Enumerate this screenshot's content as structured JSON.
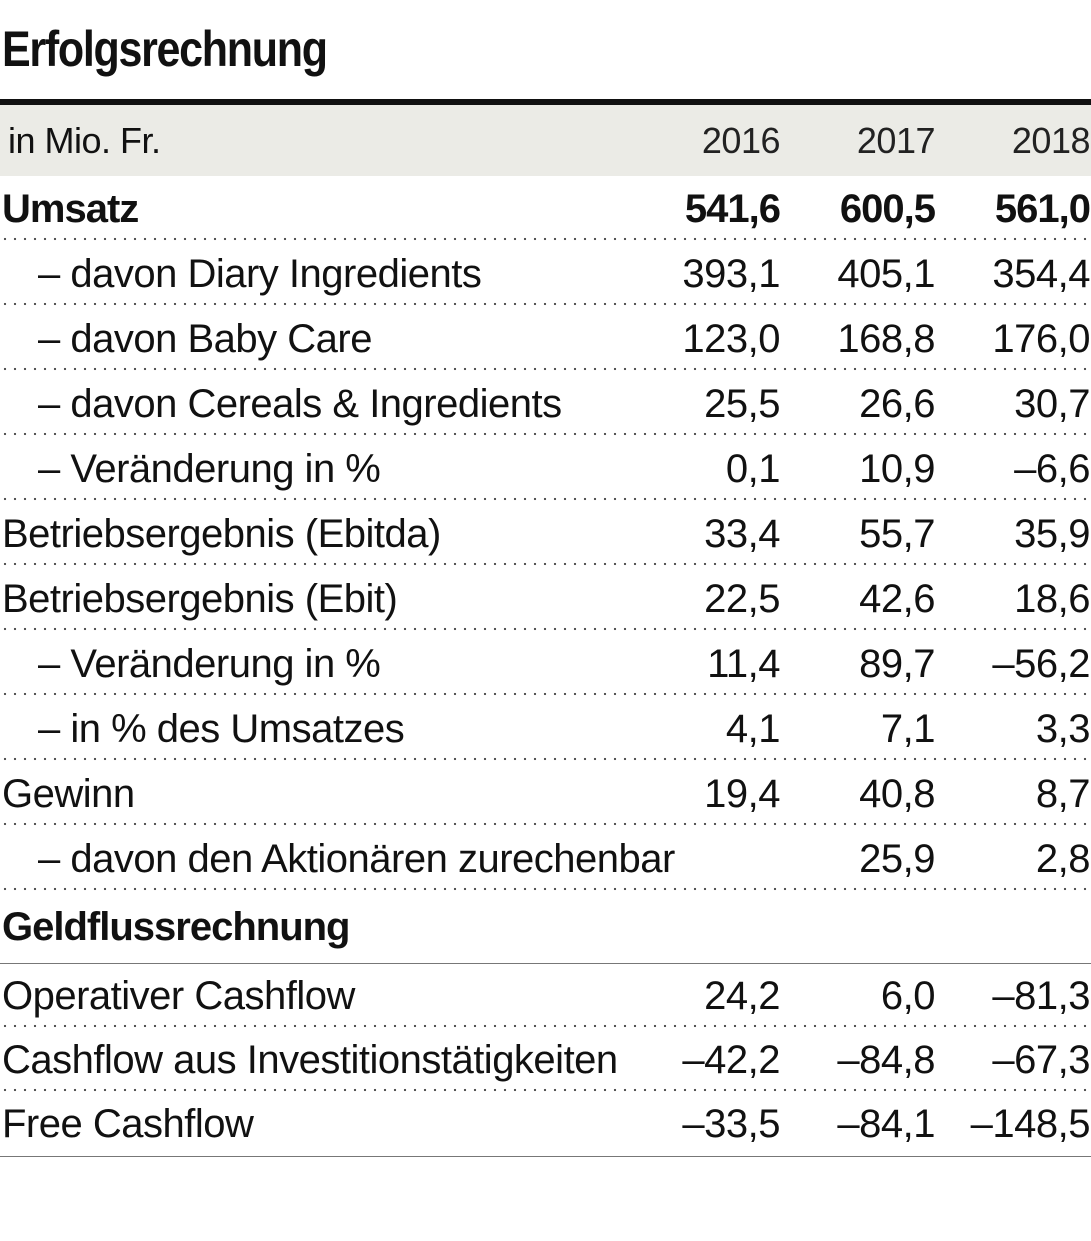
{
  "title": "Erfolgsrechnung",
  "header": {
    "unit_label": "in Mio. Fr.",
    "years": [
      "2016",
      "2017",
      "2018"
    ]
  },
  "income_rows": [
    {
      "label": "Umsatz",
      "values": [
        "541,6",
        "600,5",
        "561,0"
      ],
      "style": "bold",
      "indent": false
    },
    {
      "label": "– davon Diary Ingredients",
      "values": [
        "393,1",
        "405,1",
        "354,4"
      ],
      "style": "normal",
      "indent": true
    },
    {
      "label": "– davon Baby Care",
      "values": [
        "123,0",
        "168,8",
        "176,0"
      ],
      "style": "normal",
      "indent": true
    },
    {
      "label": "– davon Cereals & Ingredients",
      "values": [
        "25,5",
        "26,6",
        "30,7"
      ],
      "style": "normal",
      "indent": true
    },
    {
      "label": "– Veränderung in %",
      "values": [
        "0,1",
        "10,9",
        "–6,6"
      ],
      "style": "normal",
      "indent": true
    },
    {
      "label": "Betriebsergebnis (Ebitda)",
      "values": [
        "33,4",
        "55,7",
        "35,9"
      ],
      "style": "normal",
      "indent": false
    },
    {
      "label": "Betriebsergebnis (Ebit)",
      "values": [
        "22,5",
        "42,6",
        "18,6"
      ],
      "style": "normal",
      "indent": false
    },
    {
      "label": "– Veränderung in %",
      "values": [
        "11,4",
        "89,7",
        "–56,2"
      ],
      "style": "normal",
      "indent": true
    },
    {
      "label": "– in % des Umsatzes",
      "values": [
        "4,1",
        "7,1",
        "3,3"
      ],
      "style": "normal",
      "indent": true
    },
    {
      "label": "Gewinn",
      "values": [
        "19,4",
        "40,8",
        "8,7"
      ],
      "style": "normal",
      "indent": false
    },
    {
      "label": "– davon den Aktionären zurechenbar",
      "values": [
        "",
        "25,9",
        "2,8"
      ],
      "style": "normal",
      "indent": true
    }
  ],
  "cashflow_section": {
    "title": "Geldflussrechnung",
    "rows": [
      {
        "label": "Operativer Cashflow",
        "values": [
          "24,2",
          "6,0",
          "–81,3"
        ]
      },
      {
        "label": "Cashflow aus Investitionstätigkeiten",
        "values": [
          "–42,2",
          "–84,8",
          "–67,3"
        ]
      },
      {
        "label": "Free Cashflow",
        "values": [
          "–33,5",
          "–84,1",
          "–148,5"
        ]
      }
    ]
  }
}
